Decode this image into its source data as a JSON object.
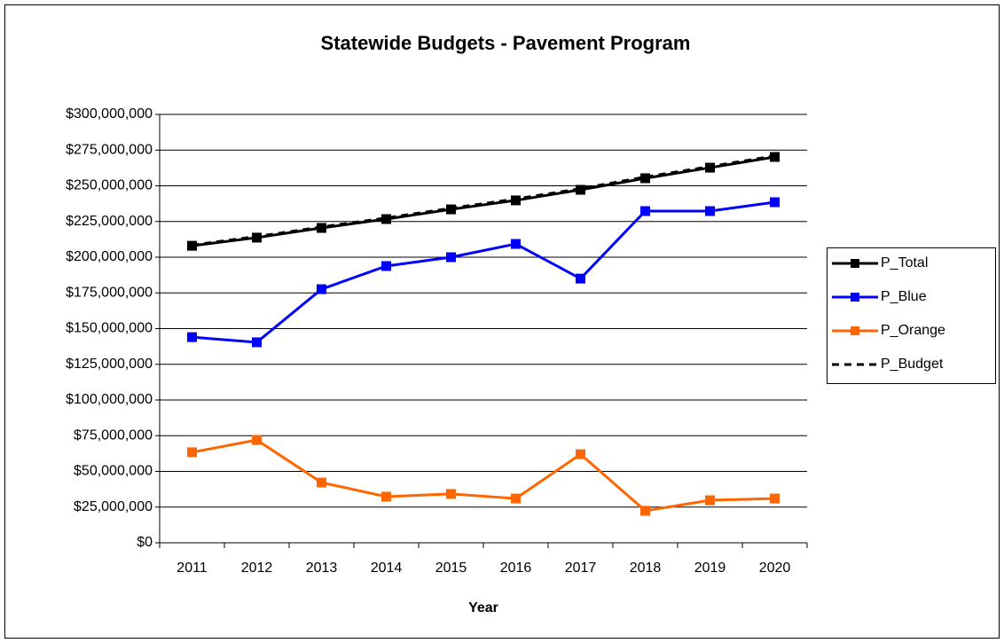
{
  "chart_data": {
    "type": "line",
    "title": "Statewide Budgets - Pavement Program",
    "x_label": "Year",
    "categories": [
      "2011",
      "2012",
      "2013",
      "2014",
      "2015",
      "2016",
      "2017",
      "2018",
      "2019",
      "2020"
    ],
    "series": [
      {
        "name": "P_Total",
        "color": "#000000",
        "marker": true,
        "line_style": "solid",
        "values": [
          208000000,
          213700000,
          220500000,
          226700000,
          233500000,
          239800000,
          247200000,
          255300000,
          262700000,
          270200000
        ]
      },
      {
        "name": "P_Blue",
        "color": "#0000ff",
        "marker": true,
        "line_style": "solid",
        "values": [
          144000000,
          140400000,
          177600000,
          193800000,
          200000000,
          209300000,
          185000000,
          232300000,
          232300000,
          238500000
        ]
      },
      {
        "name": "P_Orange",
        "color": "#ff6600",
        "marker": true,
        "line_style": "solid",
        "values": [
          63400000,
          72000000,
          42200000,
          32300000,
          34200000,
          31000000,
          62000000,
          22400000,
          29800000,
          31000000
        ]
      },
      {
        "name": "P_Budget",
        "color": "#000000",
        "marker": false,
        "line_style": "dashed",
        "values": [
          208500000,
          214500000,
          221200000,
          227500000,
          234300000,
          240800000,
          248000000,
          256200000,
          263500000,
          271000000
        ]
      }
    ],
    "ylim": [
      0,
      300000000
    ],
    "yticks": [
      {
        "value": 0,
        "label": "$0"
      },
      {
        "value": 25000000,
        "label": "$25,000,000"
      },
      {
        "value": 50000000,
        "label": "$50,000,000"
      },
      {
        "value": 75000000,
        "label": "$75,000,000"
      },
      {
        "value": 100000000,
        "label": "$100,000,000"
      },
      {
        "value": 125000000,
        "label": "$125,000,000"
      },
      {
        "value": 150000000,
        "label": "$150,000,000"
      },
      {
        "value": 175000000,
        "label": "$175,000,000"
      },
      {
        "value": 200000000,
        "label": "$200,000,000"
      },
      {
        "value": 225000000,
        "label": "$225,000,000"
      },
      {
        "value": 250000000,
        "label": "$250,000,000"
      },
      {
        "value": 275000000,
        "label": "$275,000,000"
      },
      {
        "value": 300000000,
        "label": "$300,000,000"
      }
    ],
    "grid": true,
    "legend": "right"
  }
}
